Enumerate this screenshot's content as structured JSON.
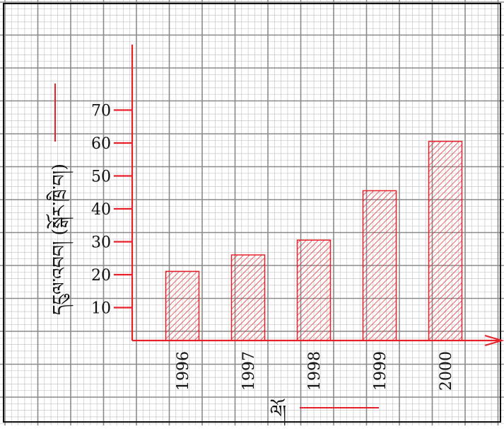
{
  "chart_data": {
    "type": "bar",
    "categories": [
      "1996",
      "1997",
      "1998",
      "1999",
      "2000"
    ],
    "values": [
      21,
      26,
      30.5,
      45.5,
      60.5
    ],
    "ylim": [
      0,
      70
    ],
    "y_ticks": [
      "10",
      "20",
      "30",
      "40",
      "50",
      "60",
      "70"
    ],
    "ylabel": "དངུལ་འབབ། (སྒོར་ཁྲི་བ།)",
    "xlabel": "ལོ།",
    "grid": true,
    "bar_fill": "hatched",
    "colors": {
      "axis": "#e8202a",
      "bar_stroke": "#e8202a",
      "hatch": "#e8202a",
      "grid_major": "#8a8a8a",
      "grid_minor": "#c8c8c8",
      "text": "#111111"
    }
  }
}
